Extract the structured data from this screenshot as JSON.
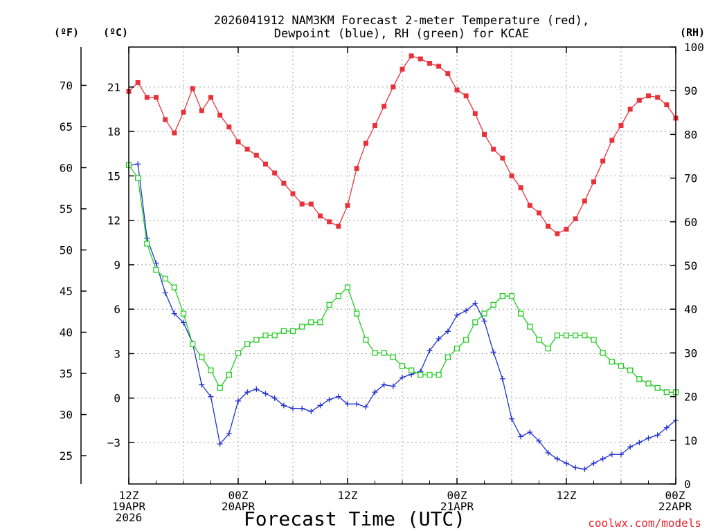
{
  "chart_data": {
    "type": "line",
    "title": [
      "2026041912 NAM3KM Forecast 2-meter Temperature (red),",
      "Dewpoint (blue), RH (green) for KCAE"
    ],
    "xlabel": "Forecast Time (UTC)",
    "credit": "coolwx.com/models",
    "units": {
      "fahrenheit": "(ºF)",
      "celsius": "(ºC)",
      "rh": "(RH)"
    },
    "x_unit": "forecast hour",
    "xlim": [
      0,
      60
    ],
    "ylim_c": [
      -5.8,
      23.7
    ],
    "ylim_rh": [
      0,
      100
    ],
    "x_ticks": [
      {
        "hour": 0,
        "lines": [
          "12Z",
          "19APR",
          "2026"
        ]
      },
      {
        "hour": 12,
        "lines": [
          "00Z",
          "20APR"
        ]
      },
      {
        "hour": 24,
        "lines": [
          "12Z"
        ]
      },
      {
        "hour": 36,
        "lines": [
          "00Z",
          "21APR"
        ]
      },
      {
        "hour": 48,
        "lines": [
          "12Z"
        ]
      },
      {
        "hour": 60,
        "lines": [
          "00Z",
          "22APR"
        ]
      }
    ],
    "c_ticks": [
      -3,
      0,
      3,
      6,
      9,
      12,
      15,
      18,
      21
    ],
    "c_tick_labels": [
      "−3",
      "0",
      "3",
      "6",
      "9",
      "12",
      "15",
      "18",
      "21"
    ],
    "f_ticks": [
      25,
      30,
      35,
      40,
      45,
      50,
      55,
      60,
      65,
      70
    ],
    "rh_ticks": [
      0,
      10,
      20,
      30,
      40,
      50,
      60,
      70,
      80,
      90,
      100
    ],
    "grid": true,
    "series": [
      {
        "name": "2-meter Temperature",
        "axis": "celsius",
        "color": "#e8323a",
        "marker": "filled-square",
        "hours": [
          0,
          1,
          2,
          3,
          4,
          5,
          6,
          7,
          8,
          9,
          10,
          11,
          12,
          13,
          14,
          15,
          16,
          17,
          18,
          19,
          20,
          21,
          22,
          23,
          24,
          25,
          26,
          27,
          28,
          29,
          30,
          31,
          32,
          33,
          34,
          35,
          36,
          37,
          38,
          39,
          40,
          41,
          42,
          43,
          44,
          45,
          46,
          47,
          48,
          49,
          50,
          51,
          52,
          53,
          54,
          55,
          56,
          57,
          58,
          59,
          60
        ],
        "values": [
          20.7,
          21.3,
          20.3,
          20.3,
          18.8,
          17.9,
          19.3,
          20.9,
          19.4,
          20.3,
          19.1,
          18.3,
          17.3,
          16.8,
          16.4,
          15.8,
          15.2,
          14.5,
          13.8,
          13.1,
          13.1,
          12.3,
          11.9,
          11.6,
          13.0,
          15.5,
          17.2,
          18.4,
          19.7,
          21.0,
          22.2,
          23.1,
          22.9,
          22.6,
          22.4,
          21.9,
          20.8,
          20.4,
          19.2,
          17.8,
          16.8,
          16.2,
          15.0,
          14.2,
          13.0,
          12.5,
          11.6,
          11.1,
          11.4,
          12.1,
          13.3,
          14.6,
          16.0,
          17.4,
          18.4,
          19.5,
          20.1,
          20.4,
          20.3,
          19.8,
          18.9
        ]
      },
      {
        "name": "Dewpoint",
        "axis": "celsius",
        "color": "#2030d0",
        "marker": "plus",
        "hours": [
          0,
          1,
          2,
          3,
          4,
          5,
          6,
          7,
          8,
          9,
          10,
          11,
          12,
          13,
          14,
          15,
          16,
          17,
          18,
          19,
          20,
          21,
          22,
          23,
          24,
          25,
          26,
          27,
          28,
          29,
          30,
          31,
          32,
          33,
          34,
          35,
          36,
          37,
          38,
          39,
          40,
          41,
          42,
          43,
          44,
          45,
          46,
          47,
          48,
          49,
          50,
          51,
          52,
          53,
          54,
          55,
          56,
          57,
          58,
          59,
          60
        ],
        "values": [
          15.7,
          15.8,
          10.8,
          9.1,
          7.1,
          5.7,
          5.1,
          3.7,
          0.9,
          0.1,
          -3.1,
          -2.4,
          -0.2,
          0.4,
          0.6,
          0.3,
          0.0,
          -0.5,
          -0.7,
          -0.7,
          -0.9,
          -0.5,
          -0.1,
          0.1,
          -0.4,
          -0.4,
          -0.6,
          0.4,
          0.9,
          0.8,
          1.4,
          1.6,
          1.8,
          3.2,
          4.0,
          4.5,
          5.6,
          5.9,
          6.4,
          5.2,
          3.1,
          1.3,
          -1.4,
          -2.6,
          -2.3,
          -2.9,
          -3.7,
          -4.1,
          -4.4,
          -4.7,
          -4.8,
          -4.4,
          -4.1,
          -3.8,
          -3.8,
          -3.3,
          -3.0,
          -2.7,
          -2.5,
          -2.0,
          -1.5
        ]
      },
      {
        "name": "RH",
        "axis": "rh",
        "color": "#22cc22",
        "marker": "open-square",
        "hours": [
          0,
          1,
          2,
          3,
          4,
          5,
          6,
          7,
          8,
          9,
          10,
          11,
          12,
          13,
          14,
          15,
          16,
          17,
          18,
          19,
          20,
          21,
          22,
          23,
          24,
          25,
          26,
          27,
          28,
          29,
          30,
          31,
          32,
          33,
          34,
          35,
          36,
          37,
          38,
          39,
          40,
          41,
          42,
          43,
          44,
          45,
          46,
          47,
          48,
          49,
          50,
          51,
          52,
          53,
          54,
          55,
          56,
          57,
          58,
          59,
          60
        ],
        "values": [
          73,
          70,
          55,
          49,
          47,
          45,
          39,
          32,
          29,
          26,
          22,
          25,
          30,
          32,
          33,
          34,
          34,
          35,
          35,
          36,
          37,
          37,
          41,
          43,
          45,
          39,
          33,
          30,
          30,
          29,
          27,
          26,
          25,
          25,
          25,
          29,
          31,
          33,
          37,
          39,
          41,
          43,
          43,
          39,
          36,
          33,
          31,
          34,
          34,
          34,
          34,
          33,
          30,
          28,
          27,
          26,
          24,
          23,
          22,
          21,
          21
        ]
      }
    ]
  }
}
